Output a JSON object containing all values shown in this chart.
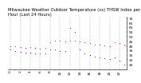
{
  "title": "Milwaukee Weather Outdoor Temperature (vs) THSW Index per Hour (Last 24 Hours)",
  "hours": [
    0,
    1,
    2,
    3,
    4,
    5,
    6,
    7,
    8,
    9,
    10,
    11,
    12,
    13,
    14,
    15,
    16,
    17,
    18,
    19,
    20,
    21,
    22,
    23
  ],
  "temp": [
    40,
    40,
    39,
    38,
    39,
    38,
    37,
    38,
    44,
    46,
    46,
    45,
    46,
    46,
    45,
    44,
    43,
    42,
    42,
    41,
    40,
    44,
    43,
    42
  ],
  "thsw": [
    36,
    35,
    34,
    33,
    33,
    32,
    32,
    32,
    36,
    36,
    35,
    35,
    60,
    55,
    36,
    32,
    30,
    29,
    28,
    27,
    26,
    28,
    24,
    20
  ],
  "temp_color": "#cc0000",
  "thsw_color": "#0000cc",
  "background": "#ffffff",
  "ylim_min": 15,
  "ylim_max": 72,
  "yticks": [
    20,
    25,
    30,
    35,
    40,
    45,
    50,
    55,
    60,
    65,
    70
  ],
  "grid_color": "#888888",
  "title_fontsize": 3.8,
  "tick_fontsize": 3.2,
  "marker_size": 1.5
}
